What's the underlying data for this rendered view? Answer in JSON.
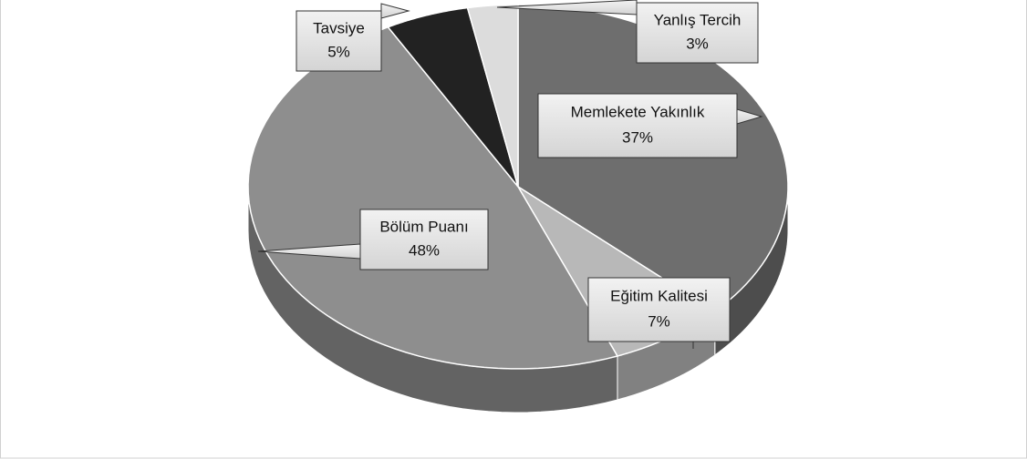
{
  "chart_data": {
    "type": "pie",
    "categories": [
      "Memlekete Yakınlık",
      "Eğitim Kalitesi",
      "Bölüm Puanı",
      "Tavsiye",
      "Yanlış Tercih"
    ],
    "values": [
      37,
      7,
      48,
      5,
      3
    ],
    "value_labels": [
      "37%",
      "7%",
      "48%",
      "5%",
      "3%"
    ],
    "colors": [
      "#6e6e6e",
      "#b8b8b8",
      "#8e8e8e",
      "#222222",
      "#dcdcdc"
    ]
  }
}
